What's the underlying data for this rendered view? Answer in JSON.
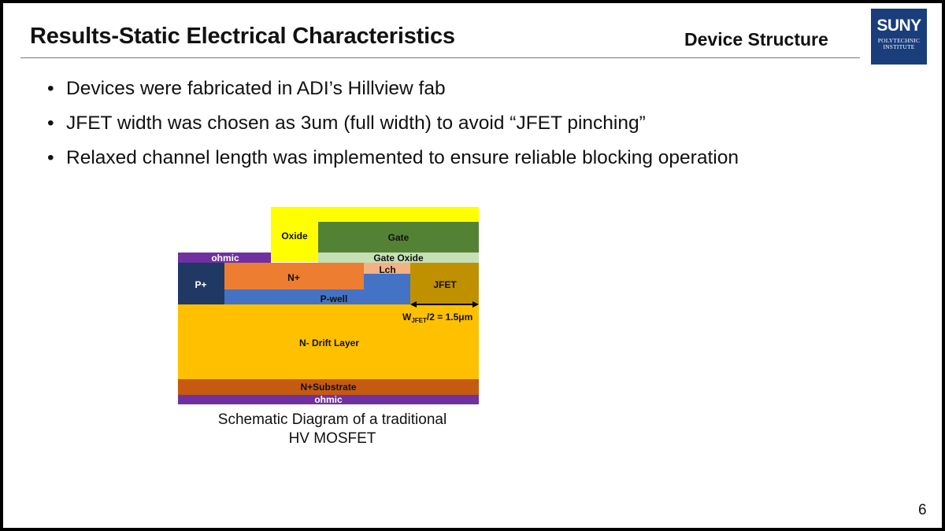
{
  "header": {
    "title": "Results-Static Electrical Characteristics",
    "section": "Device Structure"
  },
  "logo": {
    "main": "SUNY",
    "sub_line1": "POLYTECHNIC",
    "sub_line2": "INSTITUTE",
    "color": "#1a3d7c"
  },
  "bullets": [
    "Devices were fabricated in ADI’s Hillview fab",
    "JFET width was chosen as 3um (full width) to avoid “JFET pinching”",
    "Relaxed channel length was implemented to ensure reliable blocking operation"
  ],
  "diagram": {
    "labels": {
      "oxide": "Oxide",
      "gate": "Gate",
      "ohmic_top": "ohmic",
      "gate_oxide": "Gate Oxide",
      "lch": "Lch",
      "p_plus": "P+",
      "n_plus": "N+",
      "jfet": "JFET",
      "p_well": "P-well",
      "wjfet_main": "W",
      "wjfet_sub": "JFET",
      "wjfet_rest": "/2 = 1.5μm",
      "drift": "N- Drift Layer",
      "substrate": "N+Substrate",
      "ohmic_bottom": "ohmic"
    },
    "colors": {
      "oxide": "#ffff00",
      "gate": "#548235",
      "gate_oxide": "#c5e0b4",
      "ohmic": "#7030a0",
      "p_plus": "#1f3864",
      "n_plus": "#ed7d31",
      "lch": "#f4b183",
      "p_well": "#4472c4",
      "jfet": "#bf9000",
      "drift": "#ffc000",
      "substrate": "#c55a11"
    },
    "caption_line1": "Schematic Diagram of a traditional",
    "caption_line2": "HV MOSFET"
  },
  "page_number": "6"
}
